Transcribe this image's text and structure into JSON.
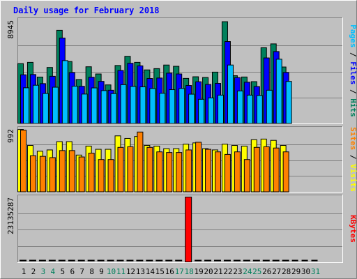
{
  "chart_data": {
    "type": "bar",
    "title": "Daily usage for February 2018",
    "categories": [
      "1",
      "2",
      "3",
      "4",
      "5",
      "6",
      "7",
      "8",
      "9",
      "10",
      "11",
      "12",
      "13",
      "14",
      "15",
      "16",
      "17",
      "18",
      "19",
      "20",
      "21",
      "22",
      "23",
      "24",
      "25",
      "26",
      "27",
      "28",
      "29",
      "30",
      "31"
    ],
    "weekend_days": [
      3,
      4,
      10,
      11,
      17,
      18,
      24,
      25,
      31
    ],
    "panels": [
      {
        "id": "hits",
        "ymax_label": "8945",
        "ymax": 8945,
        "right_labels": [
          {
            "text": "Pages",
            "color": "#00bfff"
          },
          {
            "text": " / ",
            "color": "#000000"
          },
          {
            "text": "Files",
            "color": "#0000ff"
          },
          {
            "text": " / ",
            "color": "#000000"
          },
          {
            "text": "Hits",
            "color": "#00805c"
          }
        ],
        "series": [
          {
            "name": "Hits",
            "color": "#00805c",
            "values": [
              5180,
              5290,
              4025,
              4850,
              8050,
              5360,
              3810,
              4910,
              4290,
              3350,
              5020,
              5810,
              5290,
              4640,
              4750,
              5060,
              4950,
              3910,
              4050,
              3990,
              4450,
              8790,
              4140,
              4030,
              3630,
              6550,
              6880,
              4890,
              null,
              null,
              null
            ]
          },
          {
            "name": "Files",
            "color": "#0000ff",
            "values": [
              4220,
              4240,
              3460,
              4090,
              7380,
              4410,
              3230,
              4010,
              3650,
              2890,
              4590,
              5210,
              4990,
              3900,
              3940,
              4360,
              4290,
              3300,
              3620,
              3390,
              3480,
              7080,
              3980,
              3580,
              3210,
              5670,
              6220,
              4420,
              null,
              null,
              null
            ]
          },
          {
            "name": "Pages",
            "color": "#00bfff",
            "values": [
              3100,
              3320,
              2610,
              3150,
              5440,
              3240,
              2560,
              3090,
              2860,
              2600,
              3370,
              3220,
              3180,
              3040,
              2630,
              2940,
              3040,
              2550,
              2110,
              2230,
              2470,
              5060,
              2830,
              2470,
              2440,
              2890,
              5560,
              3650,
              null,
              null,
              null
            ]
          }
        ]
      },
      {
        "id": "visits",
        "ymax_label": "992",
        "ymax": 992,
        "right_labels": [
          {
            "text": "Sites",
            "color": "#ff8000"
          },
          {
            "text": " / ",
            "color": "#000000"
          },
          {
            "text": "Visits",
            "color": "#ffff00"
          }
        ],
        "series": [
          {
            "name": "Visits",
            "color": "#ffff00",
            "values": [
              980,
              730,
              640,
              660,
              790,
              790,
              580,
              720,
              670,
              670,
              880,
              840,
              870,
              730,
              720,
              680,
              680,
              750,
              770,
              680,
              660,
              750,
              730,
              720,
              820,
              830,
              810,
              730,
              null,
              null,
              null
            ]
          },
          {
            "name": "Sites",
            "color": "#ff8000",
            "values": [
              970,
              570,
              560,
              540,
              650,
              650,
              550,
              610,
              510,
              510,
              700,
              710,
              940,
              700,
              630,
              620,
              620,
              660,
              780,
              670,
              630,
              590,
              630,
              510,
              700,
              710,
              690,
              630,
              null,
              null,
              null
            ]
          }
        ]
      },
      {
        "id": "kbytes",
        "ymax_label": "23135287",
        "ymax": 23135287,
        "right_labels": [
          {
            "text": "KBytes",
            "color": "#ff0000"
          }
        ],
        "series": [
          {
            "name": "KBytes",
            "color": "#ff0000",
            "values": [
              180000,
              180000,
              180000,
              180000,
              180000,
              180000,
              180000,
              180000,
              180000,
              180000,
              180000,
              180000,
              180000,
              180000,
              180000,
              180000,
              180000,
              23135287,
              180000,
              180000,
              180000,
              180000,
              180000,
              180000,
              180000,
              180000,
              180000,
              180000,
              null,
              null,
              null
            ]
          }
        ]
      }
    ]
  },
  "colors": {
    "background": "#c0c0c0",
    "title": "#0000ff",
    "axis_text": "#000000",
    "weekend_text": "#00805c",
    "dashed_gap": "#000000"
  }
}
